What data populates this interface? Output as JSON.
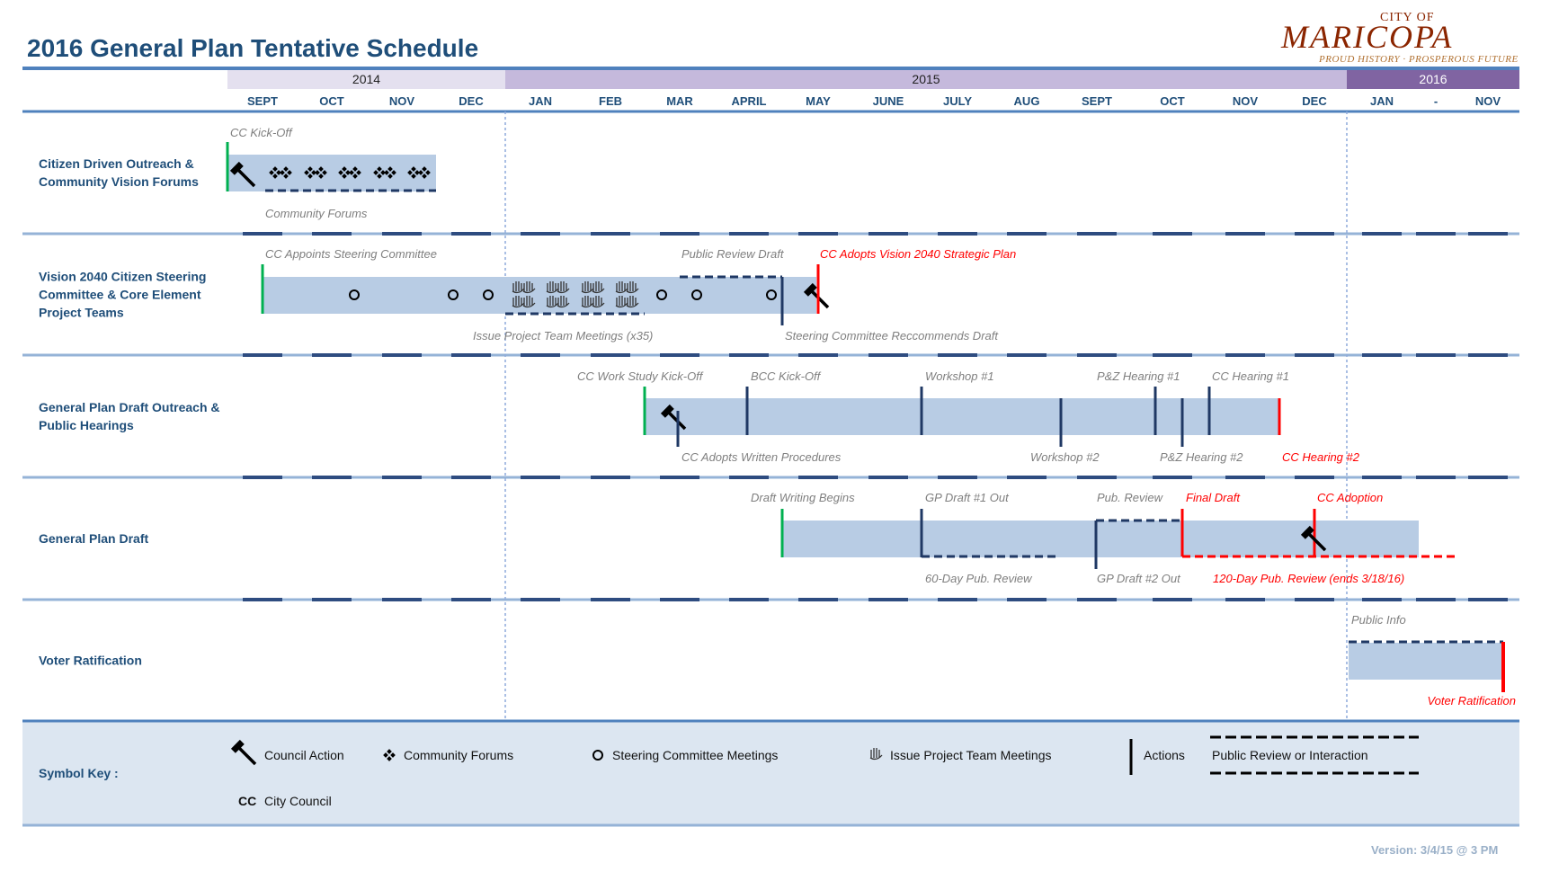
{
  "title": "2016 General Plan Tentative Schedule",
  "logo": {
    "city": "CITY OF",
    "name": "MARICOPA",
    "tagline": "PROUD HISTORY · PROSPEROUS FUTURE"
  },
  "years": [
    {
      "label": "2014",
      "color": "#e4e0ef"
    },
    {
      "label": "2015",
      "color": "#c5b9dc"
    },
    {
      "label": "2016",
      "color": "#8064a2"
    }
  ],
  "months": [
    "SEPT",
    "OCT",
    "NOV",
    "DEC",
    "JAN",
    "FEB",
    "MAR",
    "APRIL",
    "MAY",
    "JUNE",
    "JULY",
    "AUG",
    "SEPT",
    "OCT",
    "NOV",
    "DEC",
    "JAN",
    "-",
    "NOV"
  ],
  "colors": {
    "bar": "#b8cce4",
    "navy": "#1f3864",
    "green": "#00b050",
    "red": "#ff0000",
    "label": "#1f4e79",
    "annotation": "#7f7f7f",
    "key_bg": "#dce6f1"
  },
  "rows": [
    {
      "label_lines": [
        "Citizen Driven Outreach &",
        "Community Vision Forums"
      ],
      "annotations": [
        {
          "text": "CC Kick-Off",
          "red": false
        },
        {
          "text": "Community Forums",
          "red": false
        }
      ]
    },
    {
      "label_lines": [
        "Vision 2040 Citizen Steering",
        "Committee & Core Element",
        "Project Teams"
      ],
      "annotations": [
        {
          "text": "CC Appoints Steering Committee",
          "red": false
        },
        {
          "text": "Public Review Draft",
          "red": false
        },
        {
          "text": "CC Adopts Vision 2040 Strategic Plan",
          "red": true
        },
        {
          "text": "Issue Project Team Meetings (x35)",
          "red": false
        },
        {
          "text": "Steering Committee Reccommends Draft",
          "red": false
        }
      ]
    },
    {
      "label_lines": [
        "General Plan Draft Outreach &",
        "Public Hearings"
      ],
      "annotations": [
        {
          "text": "CC Work Study Kick-Off",
          "red": false
        },
        {
          "text": "BCC Kick-Off",
          "red": false
        },
        {
          "text": "Workshop #1",
          "red": false
        },
        {
          "text": "P&Z Hearing #1",
          "red": false
        },
        {
          "text": "CC Hearing #1",
          "red": false
        },
        {
          "text": "CC Adopts Written Procedures",
          "red": false
        },
        {
          "text": "Workshop #2",
          "red": false
        },
        {
          "text": "P&Z Hearing #2",
          "red": false
        },
        {
          "text": "CC Hearing #2",
          "red": true
        }
      ]
    },
    {
      "label_lines": [
        "General Plan Draft"
      ],
      "annotations": [
        {
          "text": "Draft Writing Begins",
          "red": false
        },
        {
          "text": "GP Draft #1 Out",
          "red": false
        },
        {
          "text": "Pub. Review",
          "red": false
        },
        {
          "text": "Final Draft",
          "red": true
        },
        {
          "text": "CC Adoption",
          "red": true
        },
        {
          "text": "60-Day Pub. Review",
          "red": false
        },
        {
          "text": "GP Draft #2 Out",
          "red": false
        },
        {
          "text": "120-Day Pub. Review (ends 3/18/16)",
          "red": true
        }
      ]
    },
    {
      "label_lines": [
        "Voter Ratification"
      ],
      "annotations": [
        {
          "text": "Public Info",
          "red": false
        },
        {
          "text": "Voter Ratification",
          "red": true
        }
      ]
    }
  ],
  "key": {
    "title": "Symbol Key :",
    "items": [
      {
        "icon": "gavel-icon",
        "label": "Council Action"
      },
      {
        "icon": "diamond-cluster-icon",
        "label": "Community Forums"
      },
      {
        "icon": "circle-icon",
        "label": "Steering Committee Meetings"
      },
      {
        "icon": "hands-icon",
        "label": "Issue Project Team Meetings"
      },
      {
        "icon": "bar-icon",
        "label": "Actions"
      },
      {
        "icon": "dashed-line-icon",
        "label": "Public Review or Interaction"
      }
    ],
    "abbrev": {
      "code": "CC",
      "label": "City Council"
    }
  },
  "version": "Version: 3/4/15 @ 3 PM"
}
